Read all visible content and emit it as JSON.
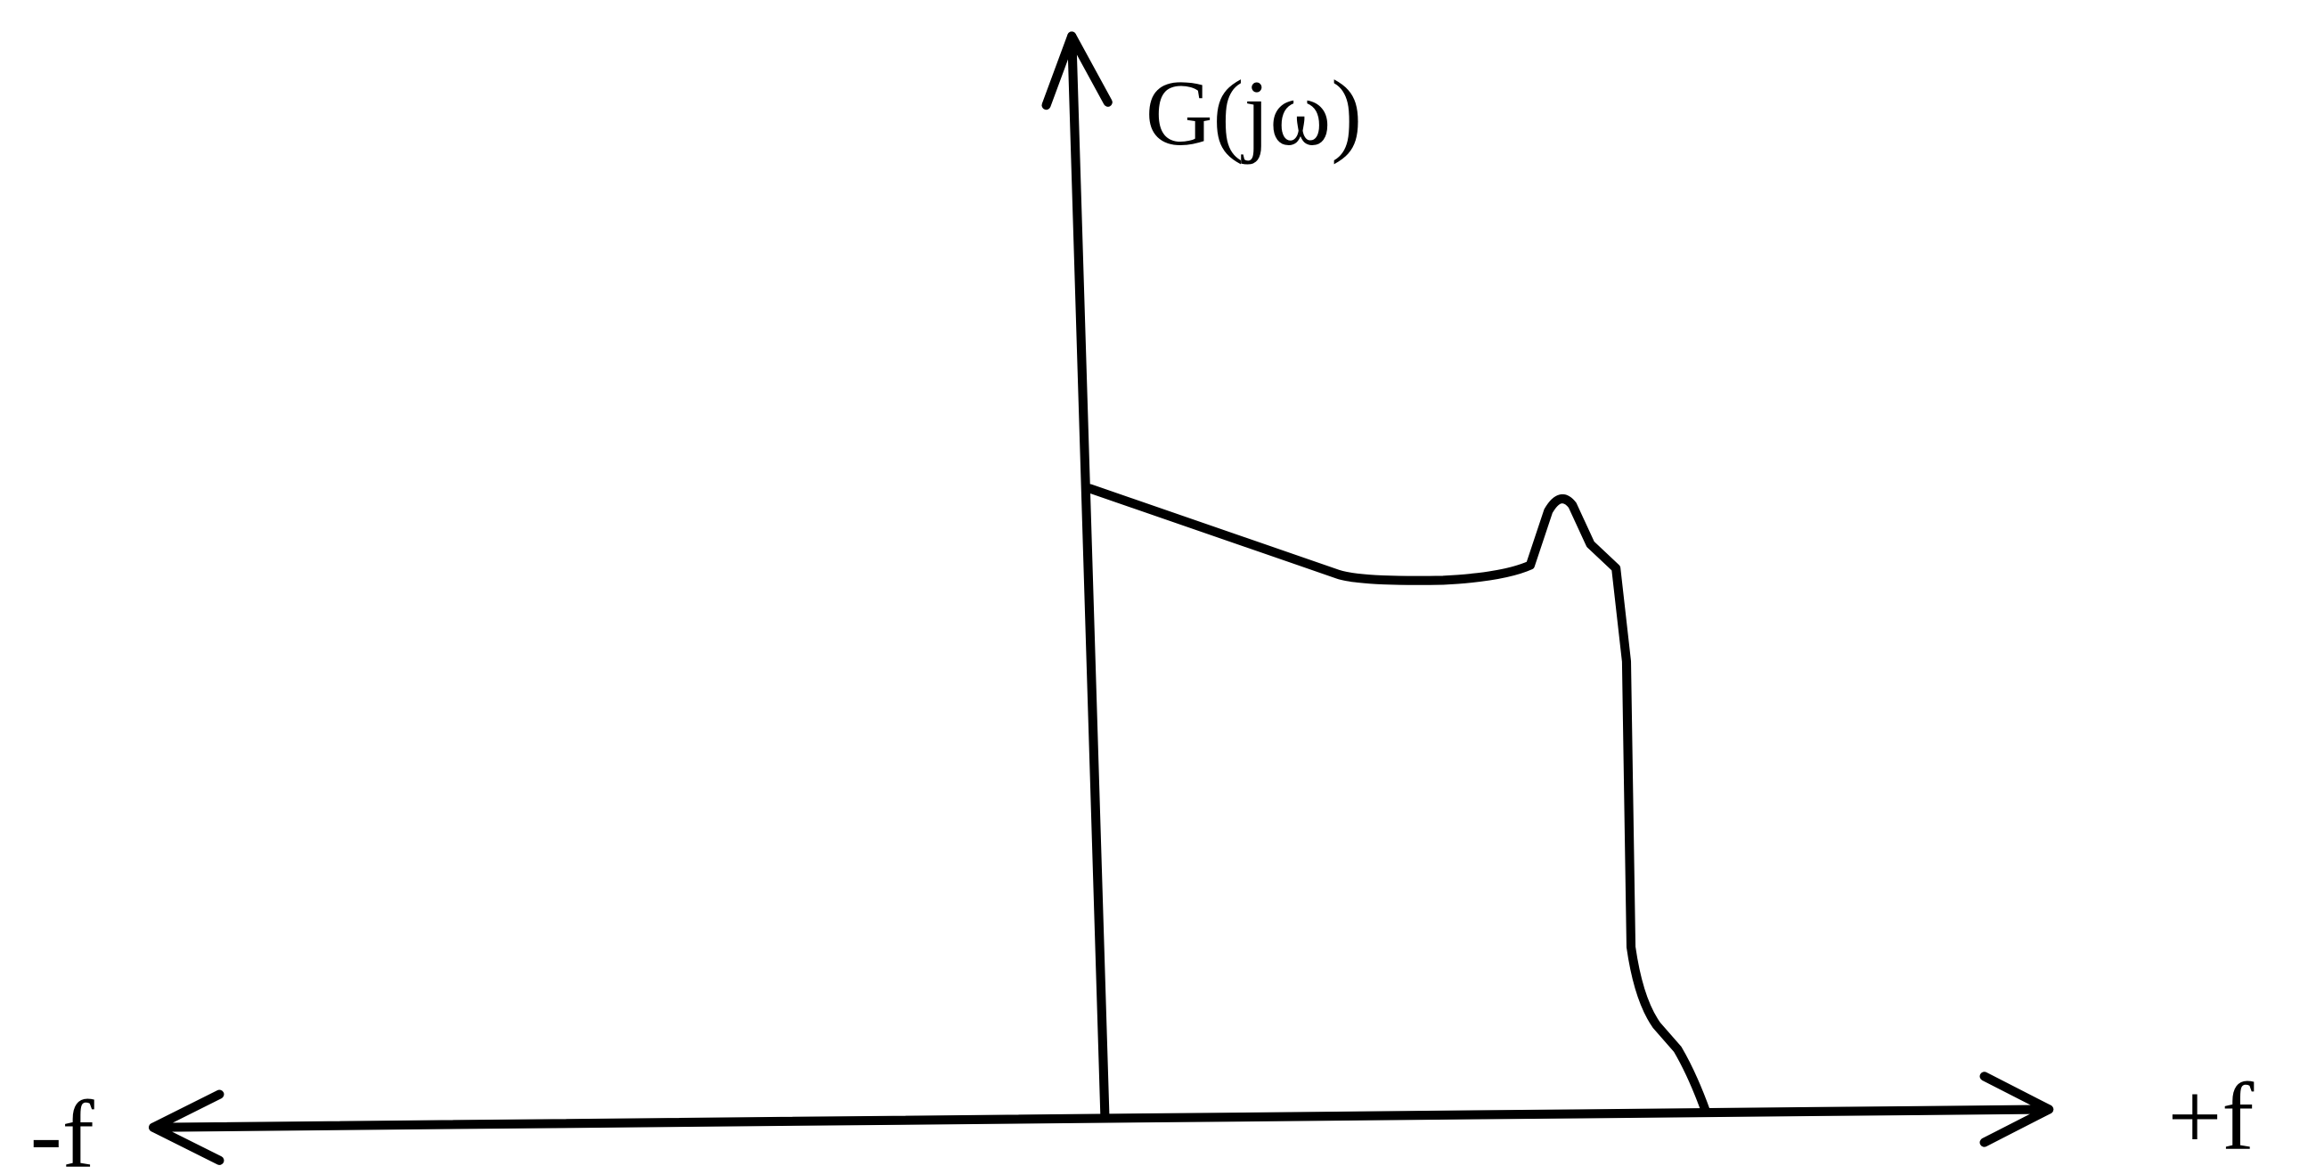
{
  "labels": {
    "y_axis": "G(jω)",
    "x_negative": "-f",
    "x_positive": "+f"
  }
}
